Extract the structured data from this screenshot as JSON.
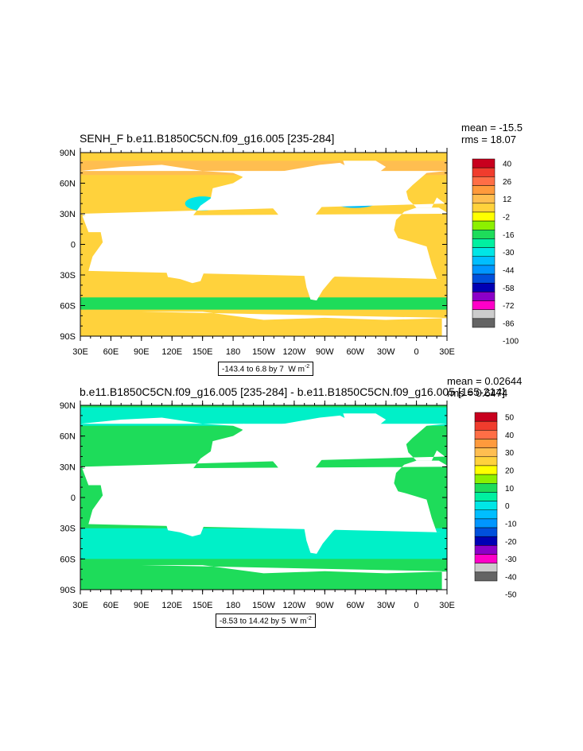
{
  "panels": [
    {
      "title_left": "SENH_F b.e11.B1850C5CN.f09_g16.005 [235-284]",
      "mean": "mean = -15.5",
      "rms": "rms = 18.07",
      "range_label": "-143.4 to 6.8 by 7",
      "units": "W m",
      "units_exp": "-2",
      "colorbar_labels": [
        "40",
        "26",
        "12",
        "-2",
        "-16",
        "-30",
        "-44",
        "-58",
        "-72",
        "-86",
        "-100"
      ],
      "colorbar_colors": [
        "#c8001e",
        "#f03c2d",
        "#ff6e46",
        "#ff9a3c",
        "#ffbe50",
        "#ffd23c",
        "#ffff00",
        "#8cf000",
        "#1edc5a",
        "#00f0a0",
        "#00e6e6",
        "#00beff",
        "#0096ff",
        "#0050dc",
        "#0000b4",
        "#8c00c8",
        "#ff00c8",
        "#cccccc",
        "#646464"
      ]
    },
    {
      "title_left": "b.e11.B1850C5CN.f09_g16.005 [235-284] - b.e11.B1850C5CN.f09_g16.005 [165-214]",
      "mean": "mean = 0.02644",
      "rms": "rms = 0.6474",
      "range_label": "-8.53 to 14.42 by 5",
      "units": "W m",
      "units_exp": "-2",
      "colorbar_labels": [
        "50",
        "40",
        "30",
        "20",
        "10",
        "0",
        "-10",
        "-20",
        "-30",
        "-40",
        "-50"
      ],
      "colorbar_colors": [
        "#c8001e",
        "#f03c2d",
        "#ff6e46",
        "#ff9a3c",
        "#ffbe50",
        "#ffd23c",
        "#ffff00",
        "#8cf000",
        "#1edc5a",
        "#00f0a0",
        "#00e6e6",
        "#00beff",
        "#0096ff",
        "#0050dc",
        "#0000b4",
        "#8c00c8",
        "#ff00c8",
        "#cccccc",
        "#646464"
      ]
    }
  ],
  "axes": {
    "lat_labels": [
      "90N",
      "60N",
      "30N",
      "0",
      "30S",
      "60S",
      "90S"
    ],
    "lon_labels": [
      "30E",
      "60E",
      "90E",
      "120E",
      "150E",
      "180",
      "150W",
      "120W",
      "90W",
      "60W",
      "30W",
      "0",
      "30E"
    ]
  },
  "colors": {
    "ocean_top": "#ffd23c",
    "ocean_top_alt": "#ffbe50",
    "ocean_top_cool": "#1edc5a",
    "ocean_bottom": "#1edc5a",
    "ocean_bottom_alt": "#00f0c8",
    "land": "#ffffff"
  }
}
